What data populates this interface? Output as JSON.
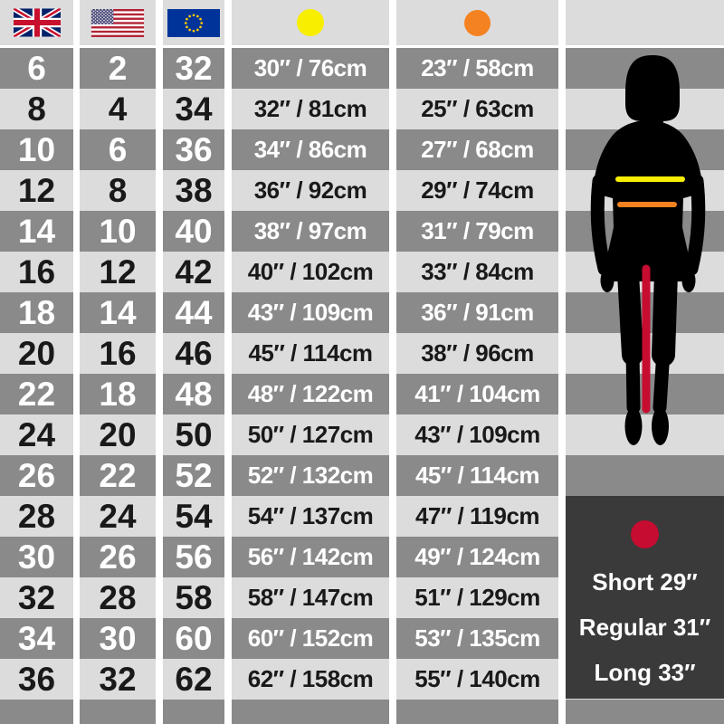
{
  "chart_data": {
    "type": "table",
    "title": "Women's clothing size conversion chart with bust, waist and inseam measurements",
    "columns": [
      {
        "id": "uk",
        "label": "UK",
        "icon": "uk-flag",
        "text_style": "big"
      },
      {
        "id": "us",
        "label": "US",
        "icon": "us-flag",
        "text_style": "big"
      },
      {
        "id": "eu",
        "label": "EU",
        "icon": "eu-flag",
        "text_style": "big"
      },
      {
        "id": "bust",
        "label": "bust (yellow marker)",
        "icon": "yellow-circle",
        "text_style": "small"
      },
      {
        "id": "waist",
        "label": "waist (orange marker)",
        "icon": "orange-circle",
        "text_style": "small"
      }
    ],
    "rows": [
      [
        "6",
        "2",
        "32",
        "30″ / 76cm",
        "23″ / 58cm"
      ],
      [
        "8",
        "4",
        "34",
        "32″ / 81cm",
        "25″ / 63cm"
      ],
      [
        "10",
        "6",
        "36",
        "34″ / 86cm",
        "27″ / 68cm"
      ],
      [
        "12",
        "8",
        "38",
        "36″ / 92cm",
        "29″ / 74cm"
      ],
      [
        "14",
        "10",
        "40",
        "38″ / 97cm",
        "31″ / 79cm"
      ],
      [
        "16",
        "12",
        "42",
        "40″ / 102cm",
        "33″ / 84cm"
      ],
      [
        "18",
        "14",
        "44",
        "43″ / 109cm",
        "36″ / 91cm"
      ],
      [
        "20",
        "16",
        "46",
        "45″ / 114cm",
        "38″ / 96cm"
      ],
      [
        "22",
        "18",
        "48",
        "48″ / 122cm",
        "41″ / 104cm"
      ],
      [
        "24",
        "20",
        "50",
        "50″ / 127cm",
        "43″ / 109cm"
      ],
      [
        "26",
        "22",
        "52",
        "52″ / 132cm",
        "45″ / 114cm"
      ],
      [
        "28",
        "24",
        "54",
        "54″ / 137cm",
        "47″ / 119cm"
      ],
      [
        "30",
        "26",
        "56",
        "56″ / 142cm",
        "49″ / 124cm"
      ],
      [
        "32",
        "28",
        "58",
        "58″ / 147cm",
        "51″ / 129cm"
      ],
      [
        "34",
        "30",
        "60",
        "60″ / 152cm",
        "53″ / 135cm"
      ],
      [
        "36",
        "32",
        "62",
        "62″ / 158cm",
        "55″ / 140cm"
      ]
    ],
    "layout_hints": {
      "row_striping": "alternating dark/light starting dark",
      "figure": "female silhouette with bust line (yellow), waist line (orange), inseam line (red)"
    }
  },
  "legend": {
    "marker_icon": "red-circle",
    "items": [
      "Short 29″",
      "Regular 31″",
      "Long 33″"
    ]
  },
  "colors": {
    "row_dark": "#8a8a8a",
    "row_light": "#dcdcdc",
    "legend_box": "#3a3a3a",
    "bust_marker": "#f8ee00",
    "waist_marker": "#f58220",
    "inseam_marker": "#c60c30"
  }
}
